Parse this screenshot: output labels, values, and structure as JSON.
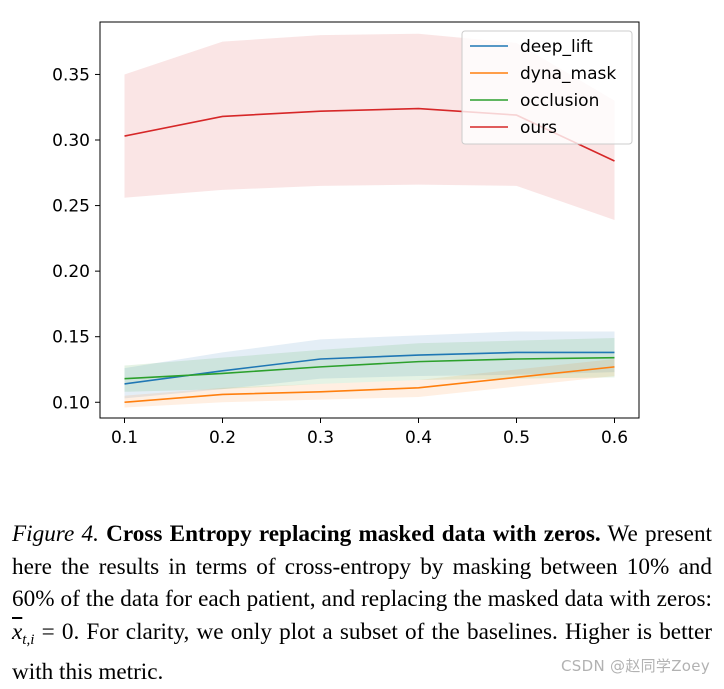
{
  "chart_data": {
    "type": "line",
    "title": "",
    "xlabel": "",
    "ylabel": "",
    "x": [
      0.1,
      0.2,
      0.3,
      0.4,
      0.5,
      0.6
    ],
    "xlim": [
      0.075,
      0.625
    ],
    "ylim": [
      0.088,
      0.39
    ],
    "x_ticks": [
      "0.1",
      "0.2",
      "0.3",
      "0.4",
      "0.5",
      "0.6"
    ],
    "y_ticks": [
      "0.10",
      "0.15",
      "0.20",
      "0.25",
      "0.30",
      "0.35"
    ],
    "y_tick_values": [
      0.1,
      0.15,
      0.2,
      0.25,
      0.3,
      0.35
    ],
    "grid": false,
    "legend_position": "top-right",
    "series": [
      {
        "name": "deep_lift",
        "color": "#1f77b4",
        "values": [
          0.114,
          0.124,
          0.133,
          0.136,
          0.138,
          0.138
        ],
        "lower": [
          0.103,
          0.11,
          0.118,
          0.12,
          0.121,
          0.123
        ],
        "upper": [
          0.126,
          0.138,
          0.148,
          0.151,
          0.154,
          0.154
        ]
      },
      {
        "name": "dyna_mask",
        "color": "#ff7f0e",
        "values": [
          0.1,
          0.106,
          0.108,
          0.111,
          0.119,
          0.127
        ],
        "lower": [
          0.096,
          0.1,
          0.102,
          0.104,
          0.112,
          0.12
        ],
        "upper": [
          0.105,
          0.111,
          0.114,
          0.117,
          0.125,
          0.133
        ]
      },
      {
        "name": "occlusion",
        "color": "#2ca02c",
        "values": [
          0.118,
          0.122,
          0.127,
          0.131,
          0.133,
          0.134
        ],
        "lower": [
          0.108,
          0.11,
          0.114,
          0.117,
          0.118,
          0.119
        ],
        "upper": [
          0.128,
          0.134,
          0.14,
          0.145,
          0.147,
          0.149
        ]
      },
      {
        "name": "ours",
        "color": "#d62728",
        "values": [
          0.303,
          0.318,
          0.322,
          0.324,
          0.319,
          0.284
        ],
        "lower": [
          0.256,
          0.262,
          0.265,
          0.266,
          0.265,
          0.239
        ],
        "upper": [
          0.35,
          0.375,
          0.38,
          0.381,
          0.374,
          0.33
        ]
      }
    ]
  },
  "caption": {
    "label": "Figure 4.",
    "title": "Cross Entropy replacing masked data with zeros.",
    "body_1": "We present here the results in terms of cross-entropy by masking between 10% and 60% of the data for each patient, and replacing the masked data with zeros: ",
    "math_base": "x",
    "math_sub": "t,i",
    "math_rest": " = 0",
    "body_2": ". For clarity, we only plot a subset of the baselines. Higher is better with this metric."
  },
  "watermark": "CSDN @赵同学Zoey"
}
